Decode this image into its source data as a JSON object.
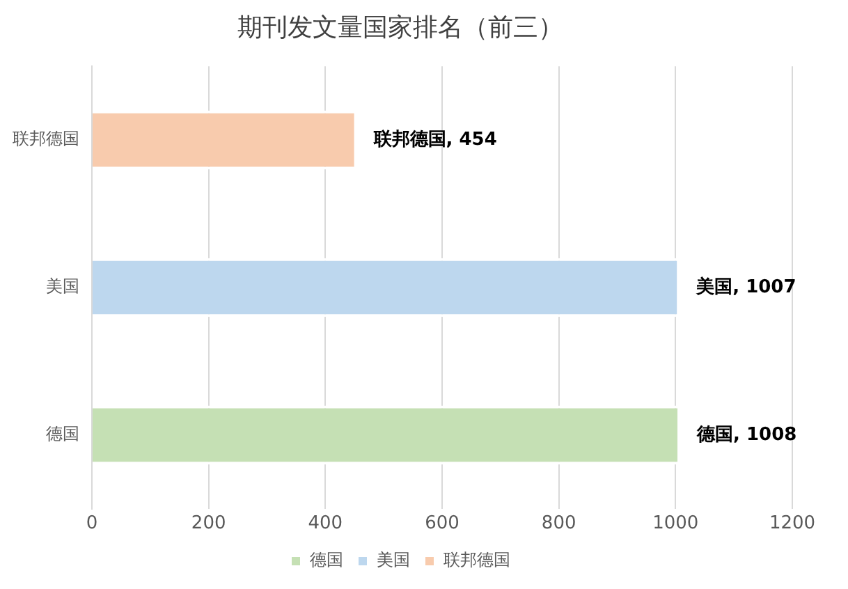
{
  "chart_data": {
    "type": "bar",
    "orientation": "horizontal",
    "title": "期刊发文量国家排名（前三）",
    "categories": [
      "联邦德国",
      "美国",
      "德国"
    ],
    "series": [
      {
        "name": "德国",
        "color": "#c5e0b4",
        "values": [
          null,
          null,
          1008
        ],
        "value_labels": [
          null,
          null,
          "德国, 1008"
        ]
      },
      {
        "name": "美国",
        "color": "#bdd7ee",
        "values": [
          null,
          1007,
          null
        ],
        "value_labels": [
          null,
          "美国, 1007",
          null
        ]
      },
      {
        "name": "联邦德国",
        "color": "#f8cbad",
        "values": [
          454,
          null,
          null
        ],
        "value_labels": [
          "联邦德国, 454",
          null,
          null
        ]
      }
    ],
    "xlim": [
      0,
      1200
    ],
    "xticks": [
      0,
      200,
      400,
      600,
      800,
      1000,
      1200
    ],
    "grid": "x",
    "legend": "bottom"
  }
}
